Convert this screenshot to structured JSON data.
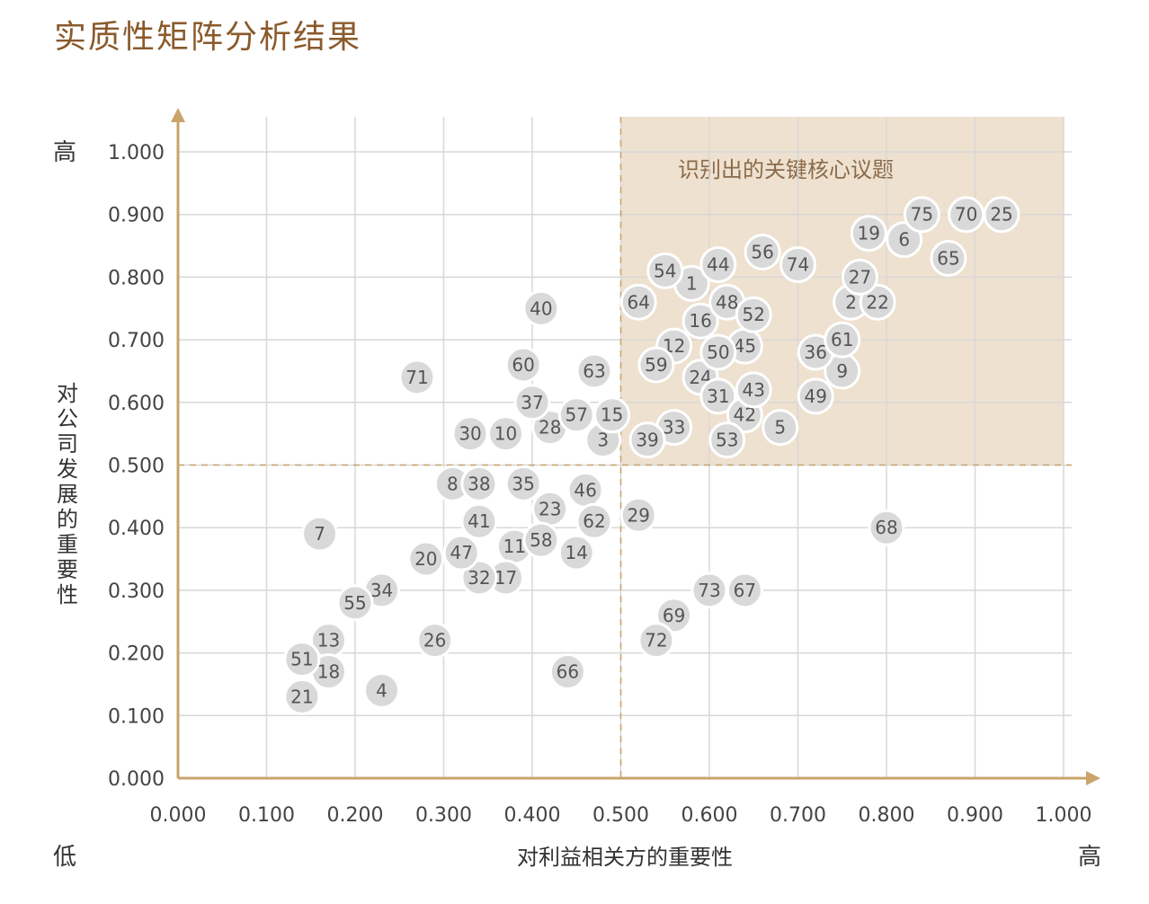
{
  "title": "实质性矩阵分析结果",
  "colors": {
    "title": "#8a5a2b",
    "axis": "#c9a46b",
    "grid": "#d8d8d8",
    "highlight": "#eee1cf",
    "point_fill": "#d9d9d9",
    "point_stroke": "#ffffff"
  },
  "chart_data": {
    "type": "scatter",
    "xlabel": "对利益相关方的重要性",
    "ylabel": "对公司发展的重要性",
    "xlim": [
      0,
      1
    ],
    "ylim": [
      0,
      1
    ],
    "x_ticks": [
      "0.000",
      "0.100",
      "0.200",
      "0.300",
      "0.400",
      "0.500",
      "0.600",
      "0.700",
      "0.800",
      "0.900",
      "1.000"
    ],
    "y_ticks": [
      "0.000",
      "0.100",
      "0.200",
      "0.300",
      "0.400",
      "0.500",
      "0.600",
      "0.700",
      "0.800",
      "0.900",
      "1.000"
    ],
    "grid": true,
    "low_label": "低",
    "high_label_x": "高",
    "high_label_y": "高",
    "quadrant_divider": {
      "x": 0.5,
      "y": 0.5
    },
    "highlight_region": {
      "x_range": [
        0.5,
        1.0
      ],
      "y_range": [
        0.5,
        1.0
      ],
      "label": "识别出的关键核心议题"
    },
    "points": [
      {
        "label": "1",
        "x": 0.58,
        "y": 0.79
      },
      {
        "label": "2",
        "x": 0.76,
        "y": 0.76
      },
      {
        "label": "3",
        "x": 0.48,
        "y": 0.54
      },
      {
        "label": "4",
        "x": 0.23,
        "y": 0.14
      },
      {
        "label": "5",
        "x": 0.68,
        "y": 0.56
      },
      {
        "label": "6",
        "x": 0.82,
        "y": 0.86
      },
      {
        "label": "7",
        "x": 0.16,
        "y": 0.39
      },
      {
        "label": "8",
        "x": 0.31,
        "y": 0.47
      },
      {
        "label": "9",
        "x": 0.75,
        "y": 0.65
      },
      {
        "label": "10",
        "x": 0.37,
        "y": 0.55
      },
      {
        "label": "11",
        "x": 0.38,
        "y": 0.37
      },
      {
        "label": "12",
        "x": 0.56,
        "y": 0.69
      },
      {
        "label": "13",
        "x": 0.17,
        "y": 0.22
      },
      {
        "label": "14",
        "x": 0.45,
        "y": 0.36
      },
      {
        "label": "15",
        "x": 0.49,
        "y": 0.58
      },
      {
        "label": "16",
        "x": 0.59,
        "y": 0.73
      },
      {
        "label": "17",
        "x": 0.37,
        "y": 0.32
      },
      {
        "label": "18",
        "x": 0.17,
        "y": 0.17
      },
      {
        "label": "19",
        "x": 0.78,
        "y": 0.87
      },
      {
        "label": "20",
        "x": 0.28,
        "y": 0.35
      },
      {
        "label": "21",
        "x": 0.14,
        "y": 0.13
      },
      {
        "label": "22",
        "x": 0.79,
        "y": 0.76
      },
      {
        "label": "23",
        "x": 0.42,
        "y": 0.43
      },
      {
        "label": "24",
        "x": 0.59,
        "y": 0.64
      },
      {
        "label": "25",
        "x": 0.93,
        "y": 0.9
      },
      {
        "label": "26",
        "x": 0.29,
        "y": 0.22
      },
      {
        "label": "27",
        "x": 0.77,
        "y": 0.8
      },
      {
        "label": "28",
        "x": 0.42,
        "y": 0.56
      },
      {
        "label": "29",
        "x": 0.52,
        "y": 0.42
      },
      {
        "label": "30",
        "x": 0.33,
        "y": 0.55
      },
      {
        "label": "31",
        "x": 0.61,
        "y": 0.61
      },
      {
        "label": "32",
        "x": 0.34,
        "y": 0.32
      },
      {
        "label": "33",
        "x": 0.56,
        "y": 0.56
      },
      {
        "label": "34",
        "x": 0.23,
        "y": 0.3
      },
      {
        "label": "35",
        "x": 0.39,
        "y": 0.47
      },
      {
        "label": "36",
        "x": 0.72,
        "y": 0.68
      },
      {
        "label": "37",
        "x": 0.4,
        "y": 0.6
      },
      {
        "label": "38",
        "x": 0.34,
        "y": 0.47
      },
      {
        "label": "39",
        "x": 0.53,
        "y": 0.54
      },
      {
        "label": "40",
        "x": 0.41,
        "y": 0.75
      },
      {
        "label": "41",
        "x": 0.34,
        "y": 0.41
      },
      {
        "label": "42",
        "x": 0.64,
        "y": 0.58
      },
      {
        "label": "43",
        "x": 0.65,
        "y": 0.62
      },
      {
        "label": "44",
        "x": 0.61,
        "y": 0.82
      },
      {
        "label": "45",
        "x": 0.64,
        "y": 0.69
      },
      {
        "label": "46",
        "x": 0.46,
        "y": 0.46
      },
      {
        "label": "47",
        "x": 0.32,
        "y": 0.36
      },
      {
        "label": "48",
        "x": 0.62,
        "y": 0.76
      },
      {
        "label": "49",
        "x": 0.72,
        "y": 0.61
      },
      {
        "label": "50",
        "x": 0.61,
        "y": 0.68
      },
      {
        "label": "51",
        "x": 0.14,
        "y": 0.19
      },
      {
        "label": "52",
        "x": 0.65,
        "y": 0.74
      },
      {
        "label": "53",
        "x": 0.62,
        "y": 0.54
      },
      {
        "label": "54",
        "x": 0.55,
        "y": 0.81
      },
      {
        "label": "55",
        "x": 0.2,
        "y": 0.28
      },
      {
        "label": "56",
        "x": 0.66,
        "y": 0.84
      },
      {
        "label": "57",
        "x": 0.45,
        "y": 0.58
      },
      {
        "label": "58",
        "x": 0.41,
        "y": 0.38
      },
      {
        "label": "59",
        "x": 0.54,
        "y": 0.66
      },
      {
        "label": "60",
        "x": 0.39,
        "y": 0.66
      },
      {
        "label": "61",
        "x": 0.75,
        "y": 0.7
      },
      {
        "label": "62",
        "x": 0.47,
        "y": 0.41
      },
      {
        "label": "63",
        "x": 0.47,
        "y": 0.65
      },
      {
        "label": "64",
        "x": 0.52,
        "y": 0.76
      },
      {
        "label": "65",
        "x": 0.87,
        "y": 0.83
      },
      {
        "label": "66",
        "x": 0.44,
        "y": 0.17
      },
      {
        "label": "67",
        "x": 0.64,
        "y": 0.3
      },
      {
        "label": "68",
        "x": 0.8,
        "y": 0.4
      },
      {
        "label": "69",
        "x": 0.56,
        "y": 0.26
      },
      {
        "label": "70",
        "x": 0.89,
        "y": 0.9
      },
      {
        "label": "71",
        "x": 0.27,
        "y": 0.64
      },
      {
        "label": "72",
        "x": 0.54,
        "y": 0.22
      },
      {
        "label": "73",
        "x": 0.6,
        "y": 0.3
      },
      {
        "label": "74",
        "x": 0.7,
        "y": 0.82
      },
      {
        "label": "75",
        "x": 0.84,
        "y": 0.9
      }
    ]
  }
}
